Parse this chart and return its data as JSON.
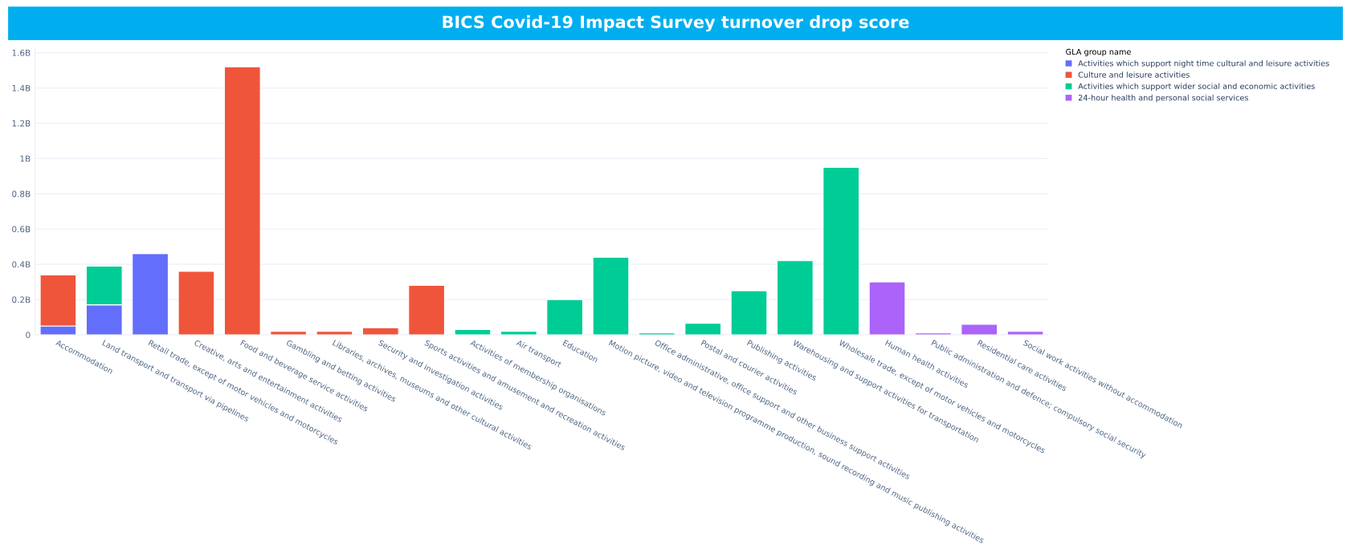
{
  "chart_data": {
    "type": "bar",
    "stacked": true,
    "title": "BICS Covid-19 Impact Survey turnover drop score",
    "legend_title": "GLA group name",
    "legend": "top right",
    "grid": "y",
    "categories": [
      "Accommodation",
      "Land transport and transport via pipelines",
      "Retail trade, except of motor vehicles and motorcycles",
      "Creative, arts and entertainment activities",
      "Food and beverage service activities",
      "Gambling and betting activities",
      "Libraries, archives, museums and other cultural activities",
      "Security and investigation activities",
      "Sports activities and amusement and recreation activities",
      "Activities of membership organisations",
      "Air transport",
      "Education",
      "Motion picture, video and television programme production, sound recording and music publishing activities",
      "Office administrative, office support and other business support activities",
      "Postal and courier activities",
      "Publishing activities",
      "Warehousing and support activities for transportation",
      "Wholesale trade, except of motor vehicles and motorcycles",
      "Human health activities",
      "Public administration and defence; compulsory social security",
      "Residential care activities",
      "Social work activities without accommodation"
    ],
    "series": [
      {
        "name": "Activities which support night time cultural and leisure activities",
        "color": "#636efa",
        "values": [
          0.05,
          0.17,
          0.46,
          null,
          null,
          null,
          null,
          null,
          null,
          null,
          null,
          null,
          null,
          null,
          null,
          null,
          null,
          null,
          null,
          null,
          null,
          null
        ]
      },
      {
        "name": "Culture and leisure activities",
        "color": "#ef553b",
        "values": [
          0.29,
          null,
          null,
          0.36,
          1.52,
          0.02,
          0.02,
          0.04,
          0.28,
          null,
          null,
          null,
          null,
          null,
          null,
          null,
          null,
          null,
          null,
          null,
          null,
          null
        ]
      },
      {
        "name": "Activities which support wider social and economic activities",
        "color": "#00cc96",
        "values": [
          null,
          0.22,
          null,
          null,
          null,
          null,
          null,
          null,
          null,
          0.03,
          0.02,
          0.2,
          0.44,
          0.01,
          0.065,
          0.25,
          0.42,
          0.95,
          null,
          null,
          null,
          null
        ]
      },
      {
        "name": "24-hour health and personal social services",
        "color": "#ab63fa",
        "values": [
          null,
          null,
          null,
          null,
          null,
          null,
          null,
          null,
          null,
          null,
          null,
          null,
          null,
          null,
          null,
          null,
          null,
          null,
          0.3,
          0.01,
          0.06,
          0.02
        ]
      }
    ],
    "ylim": [
      0,
      1.63
    ],
    "yticks": [
      {
        "value": 0,
        "label": "0"
      },
      {
        "value": 0.2,
        "label": "0.2B"
      },
      {
        "value": 0.4,
        "label": "0.4B"
      },
      {
        "value": 0.6,
        "label": "0.6B"
      },
      {
        "value": 0.8,
        "label": "0.8B"
      },
      {
        "value": 1,
        "label": "1B"
      },
      {
        "value": 1.2,
        "label": "1.2B"
      },
      {
        "value": 1.4,
        "label": "1.4B"
      },
      {
        "value": 1.6,
        "label": "1.6B"
      }
    ]
  }
}
